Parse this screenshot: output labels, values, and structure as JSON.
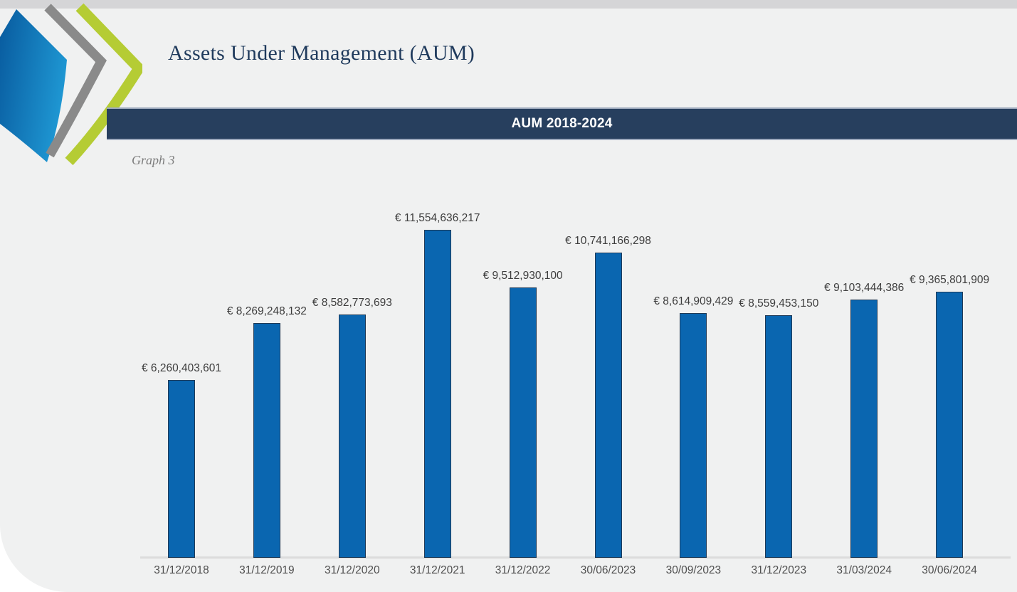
{
  "page": {
    "title": "Assets Under Management (AUM)",
    "banner": "AUM 2018-2024",
    "caption": "Graph 3"
  },
  "logo": {
    "icon": "chevron-leaf-logo"
  },
  "colors": {
    "page_bg": "#f0f1f1",
    "top_strip": "#d5d5d7",
    "title_text": "#1f3a5c",
    "banner_bg": "#273f5e",
    "banner_border": "#9fabbe",
    "banner_text": "#ffffff",
    "caption_text": "#7d7d7d",
    "bar_fill": "#0a66b0",
    "bar_border": "#1f3a57",
    "axis_line": "#dcdcdc",
    "value_label_text": "#3d3d3d",
    "tick_label_text": "#4f4f4f",
    "logo_blue": "#0a64ae",
    "logo_blue_light": "#1e96d2",
    "logo_gray": "#8a8a8a",
    "logo_green": "#b5cc34"
  },
  "chart_data": {
    "type": "bar",
    "title": "AUM 2018-2024",
    "categories": [
      "31/12/2018",
      "31/12/2019",
      "31/12/2020",
      "31/12/2021",
      "31/12/2022",
      "30/06/2023",
      "30/09/2023",
      "31/12/2023",
      "31/03/2024",
      "30/06/2024"
    ],
    "values": [
      6260403601,
      8269248132,
      8582773693,
      11554636217,
      9512930100,
      10741166298,
      8614909429,
      8559453150,
      9103444386,
      9365801909
    ],
    "labels": [
      "€ 6,260,403,601",
      "€ 8,269,248,132",
      "€ 8,582,773,693",
      "€ 11,554,636,217",
      "€ 9,512,930,100",
      "€ 10,741,166,298",
      "€ 8,614,909,429",
      "€ 8,559,453,150",
      "€ 9,103,444,386",
      "€ 9,365,801,909"
    ],
    "ylim": [
      0,
      11554636217
    ],
    "grid": false,
    "legend": false,
    "xlabel": "",
    "ylabel": ""
  }
}
